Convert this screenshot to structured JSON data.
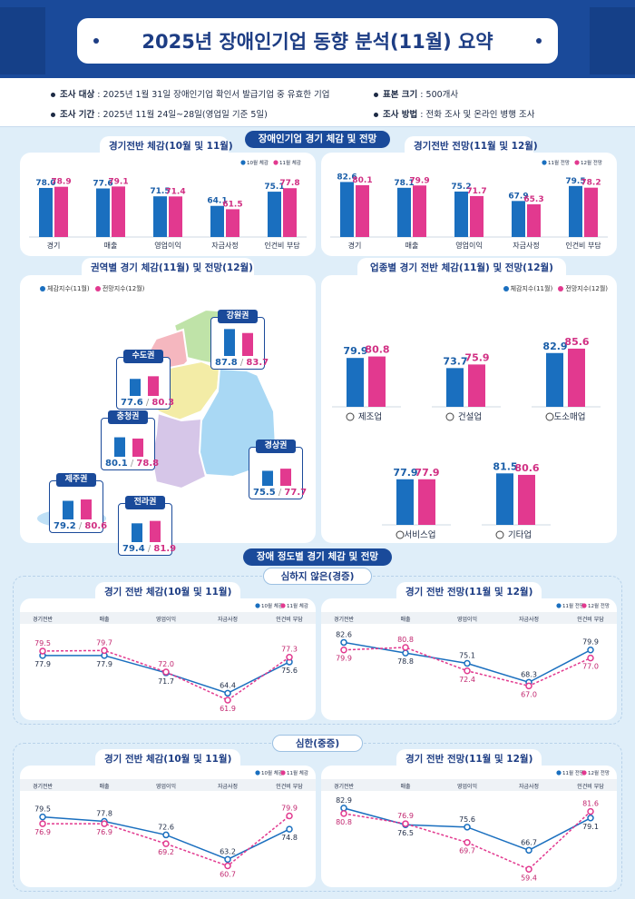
{
  "header": {
    "title": "2025년 장애인기업 동향 분석(11월) 요약"
  },
  "info": {
    "target_label": "조사 대상",
    "target_value": " : 2025년 1월 31일 장애인기업 확인서 발급기업 중 유효한 기업",
    "period_label": "조사 기간",
    "period_value": " : 2025년 11월 24일~28일(영업일 기준 5일)",
    "sample_label": "표본 크기",
    "sample_value": " : 500개사",
    "method_label": "조사 방법",
    "method_value": " : 전화 조사 및 온라인 병행 조사"
  },
  "sections": {
    "s1": "장애인기업 경기 체감 및 전망",
    "s2": "장애 정도별 경기 체감 및 전망",
    "mild": "심하지 않은(경증)",
    "severe": "심한(중증)"
  },
  "colors": {
    "blue": "#1a6fbf",
    "pink": "#e2398f",
    "navy": "#1a4a9a"
  },
  "top_bars": {
    "left": {
      "title": "경기전반 체감(10월 및 11월)",
      "legend": [
        "10월 체감",
        "11월 체감"
      ],
      "categories": [
        "경기",
        "매출",
        "영업이익",
        "자금사정",
        "인건비 부담"
      ],
      "a": [
        78.0,
        77.6,
        71.5,
        64.1,
        75.1
      ],
      "b": [
        78.9,
        79.1,
        71.4,
        61.5,
        77.8
      ]
    },
    "right": {
      "title": "경기전반 전망(11월 및 12월)",
      "legend": [
        "11월 전망",
        "12월 전망"
      ],
      "categories": [
        "경기",
        "매출",
        "영업이익",
        "자금사정",
        "인건비 부담"
      ],
      "a": [
        82.6,
        78.1,
        75.2,
        67.9,
        79.5
      ],
      "b": [
        80.1,
        79.9,
        71.7,
        65.3,
        78.2
      ]
    }
  },
  "regional": {
    "title": "권역별 경기 체감(11월) 및 전망(12월)",
    "legend": [
      "체감지수(11월)",
      "전망지수(12월)"
    ],
    "regions": [
      {
        "name": "수도권",
        "a": "77.6",
        "b": "80.3",
        "av": 77.6,
        "bv": 80.3
      },
      {
        "name": "강원권",
        "a": "87.8",
        "b": "83.7",
        "av": 87.8,
        "bv": 83.7
      },
      {
        "name": "충청권",
        "a": "80.1",
        "b": "78.8",
        "av": 80.1,
        "bv": 78.8
      },
      {
        "name": "경상권",
        "a": "75.5",
        "b": "77.7",
        "av": 75.5,
        "bv": 77.7
      },
      {
        "name": "제주권",
        "a": "79.2",
        "b": "80.6",
        "av": 79.2,
        "bv": 80.6
      },
      {
        "name": "전라권",
        "a": "79.4",
        "b": "81.9",
        "av": 79.4,
        "bv": 81.9
      }
    ],
    "slash": "/"
  },
  "industry": {
    "title": "업종별 경기 전반 체감(11월) 및 전망(12월)",
    "legend": [
      "체감지수(11월)",
      "전망지수(12월)"
    ],
    "items": [
      {
        "name": "제조업",
        "icon": "gear-icon",
        "a": 79.9,
        "b": 80.8
      },
      {
        "name": "건설업",
        "icon": "house-icon",
        "a": 73.7,
        "b": 75.9
      },
      {
        "name": "도소매업",
        "icon": "box-icon",
        "a": 82.9,
        "b": 85.6
      },
      {
        "name": "서비스업",
        "icon": "smile-icon",
        "a": 77.9,
        "b": 77.9
      },
      {
        "name": "기타업",
        "icon": "hand-icon",
        "a": 81.5,
        "b": 80.6
      }
    ]
  },
  "chart_data": [
    {
      "type": "bar",
      "title": "경기전반 체감(10월 및 11월)",
      "categories": [
        "경기",
        "매출",
        "영업이익",
        "자금사정",
        "인건비 부담"
      ],
      "series": [
        {
          "name": "10월 체감",
          "values": [
            78.0,
            77.6,
            71.5,
            64.1,
            75.1
          ]
        },
        {
          "name": "11월 체감",
          "values": [
            78.9,
            79.1,
            71.4,
            61.5,
            77.8
          ]
        }
      ]
    },
    {
      "type": "bar",
      "title": "경기전반 전망(11월 및 12월)",
      "categories": [
        "경기",
        "매출",
        "영업이익",
        "자금사정",
        "인건비 부담"
      ],
      "series": [
        {
          "name": "11월 전망",
          "values": [
            82.6,
            78.1,
            75.2,
            67.9,
            79.5
          ]
        },
        {
          "name": "12월 전망",
          "values": [
            80.1,
            79.9,
            71.7,
            65.3,
            78.2
          ]
        }
      ]
    },
    {
      "type": "line",
      "title": "경기 전반 체감(10월 및 11월)",
      "group": "심하지 않은(경증)",
      "categories": [
        "경기전반",
        "매출",
        "영업이익",
        "자금사정",
        "인건비 부담"
      ],
      "series": [
        {
          "name": "10월 체감",
          "values": [
            77.9,
            77.9,
            71.7,
            64.4,
            75.6
          ]
        },
        {
          "name": "11월 체감",
          "values": [
            79.5,
            79.7,
            72.0,
            61.9,
            77.3
          ]
        }
      ]
    },
    {
      "type": "line",
      "title": "경기 전반 전망(11월 및 12월)",
      "group": "심하지 않은(경증)",
      "categories": [
        "경기전반",
        "매출",
        "영업이익",
        "자금사정",
        "인건비 부담"
      ],
      "series": [
        {
          "name": "11월 전망",
          "values": [
            82.6,
            78.8,
            75.1,
            68.3,
            79.9
          ]
        },
        {
          "name": "12월 전망",
          "values": [
            79.9,
            80.8,
            72.4,
            67.0,
            77.0
          ]
        }
      ]
    },
    {
      "type": "line",
      "title": "경기 전반 체감(10월 및 11월)",
      "group": "심한(중증)",
      "categories": [
        "경기전반",
        "매출",
        "영업이익",
        "자금사정",
        "인건비 부담"
      ],
      "series": [
        {
          "name": "10월 체감",
          "values": [
            79.5,
            77.8,
            72.6,
            63.2,
            74.8
          ]
        },
        {
          "name": "11월 체감",
          "values": [
            76.9,
            76.9,
            69.2,
            60.7,
            79.9
          ]
        }
      ]
    },
    {
      "type": "line",
      "title": "경기 전반 전망(11월 및 12월)",
      "group": "심한(중증)",
      "categories": [
        "경기전반",
        "매출",
        "영업이익",
        "자금사정",
        "인건비 부담"
      ],
      "series": [
        {
          "name": "11월 전망",
          "values": [
            82.9,
            76.5,
            75.6,
            66.7,
            79.1
          ]
        },
        {
          "name": "12월 전망",
          "values": [
            80.8,
            76.9,
            69.7,
            59.4,
            81.6
          ]
        }
      ]
    }
  ],
  "lines": [
    {
      "title": "경기 전반 체감(10월 및 11월)",
      "legend": [
        "10월 체감",
        "11월 체감"
      ],
      "categories": [
        "경기전반",
        "매출",
        "영업이익",
        "자금사정",
        "인건비 부담"
      ],
      "a": [
        77.9,
        77.9,
        71.7,
        64.4,
        75.6
      ],
      "b": [
        79.5,
        79.7,
        72.0,
        61.9,
        77.3
      ],
      "ylim": [
        58,
        86
      ]
    },
    {
      "title": "경기 전반 전망(11월 및 12월)",
      "legend": [
        "11월 전망",
        "12월 전망"
      ],
      "categories": [
        "경기전반",
        "매출",
        "영업이익",
        "자금사정",
        "인건비 부담"
      ],
      "a": [
        82.6,
        78.8,
        75.1,
        68.3,
        79.9
      ],
      "b": [
        79.9,
        80.8,
        72.4,
        67.0,
        77.0
      ],
      "ylim": [
        58,
        86
      ]
    },
    {
      "title": "경기 전반 체감(10월 및 11월)",
      "legend": [
        "10월 체감",
        "11월 체감"
      ],
      "categories": [
        "경기전반",
        "매출",
        "영업이익",
        "자금사정",
        "인건비 부담"
      ],
      "a": [
        79.5,
        77.8,
        72.6,
        63.2,
        74.8
      ],
      "b": [
        76.9,
        76.9,
        69.2,
        60.7,
        79.9
      ],
      "ylim": [
        56,
        86
      ]
    },
    {
      "title": "경기 전반 전망(11월 및 12월)",
      "legend": [
        "11월 전망",
        "12월 전망"
      ],
      "categories": [
        "경기전반",
        "매출",
        "영업이익",
        "자금사정",
        "인건비 부담"
      ],
      "a": [
        82.9,
        76.5,
        75.6,
        66.7,
        79.1
      ],
      "b": [
        80.8,
        76.9,
        69.7,
        59.4,
        81.6
      ],
      "ylim": [
        56,
        86
      ]
    }
  ]
}
